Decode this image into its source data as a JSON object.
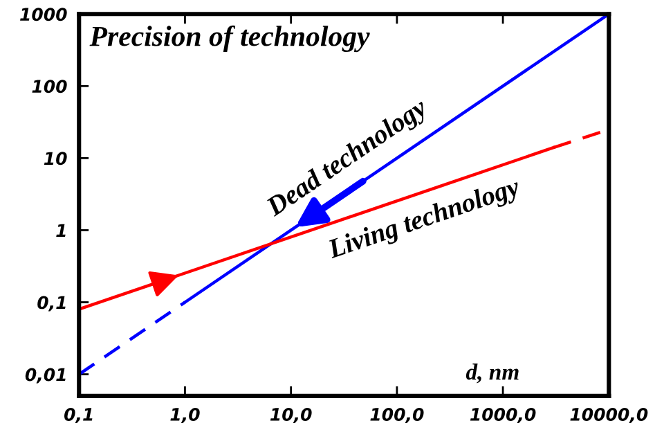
{
  "chart_data": {
    "type": "line",
    "title": "Precision of technology",
    "xlabel": "d, nm",
    "log": "xy",
    "grid": false,
    "marker": "none",
    "xlim": [
      0.1,
      10000
    ],
    "xticks": [
      {
        "value": 0.1,
        "label": "0,1"
      },
      {
        "value": 1,
        "label": "1,0"
      },
      {
        "value": 10,
        "label": "10,0"
      },
      {
        "value": 100,
        "label": "100,0"
      },
      {
        "value": 1000,
        "label": "1000,0"
      },
      {
        "value": 10000,
        "label": "10000,0"
      }
    ],
    "ylim": [
      0.005,
      1000
    ],
    "yticks": [
      {
        "value": 0.01,
        "label": "0,01"
      },
      {
        "value": 0.1,
        "label": "0,1"
      },
      1,
      10,
      100,
      1000
    ],
    "series": [
      {
        "color": "#0000ff",
        "line_style": "dashed",
        "x": [
          0.1,
          1
        ],
        "values": [
          0.01,
          0.1
        ]
      },
      {
        "color": "#0000ff",
        "line_style": "solid",
        "x": [
          1,
          10000
        ],
        "values": [
          0.1,
          1000
        ]
      },
      {
        "color": "#ff0000",
        "line_style": "solid",
        "x": [
          0.1,
          3000
        ],
        "values": [
          0.08,
          14
        ]
      },
      {
        "color": "#ff0000",
        "line_style": "dashed",
        "x": [
          3000,
          10000
        ],
        "values": [
          14,
          25
        ]
      }
    ],
    "annotations": [
      "Dead technology",
      "Living technology"
    ]
  }
}
